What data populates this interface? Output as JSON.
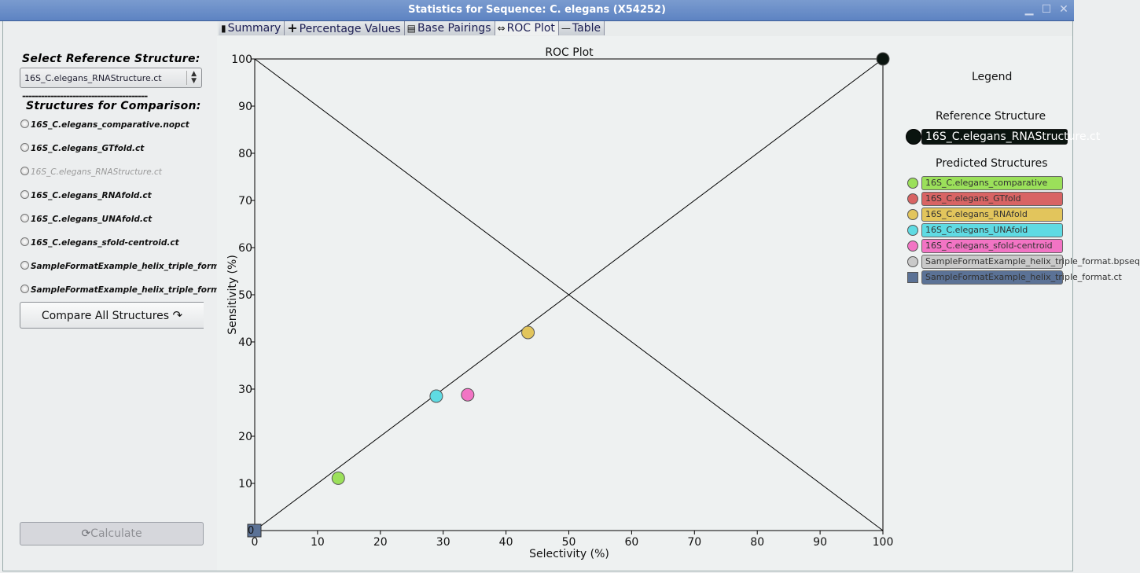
{
  "window": {
    "title": "Statistics for Sequence: C. elegans (X54252)"
  },
  "left": {
    "select_heading": "Select Reference Structure:",
    "selected_reference": "16S_C.elegans_RNAStructure.ct",
    "dash_line": "----------------------------------------",
    "comparison_heading": "Structures for Comparison:",
    "structures": [
      {
        "label": "16S_C.elegans_comparative.nopct",
        "enabled": true
      },
      {
        "label": "16S_C.elegans_GTfold.ct",
        "enabled": true
      },
      {
        "label": "16S_C.elegans_RNAStructure.ct",
        "enabled": false
      },
      {
        "label": "16S_C.elegans_RNAfold.ct",
        "enabled": true
      },
      {
        "label": "16S_C.elegans_UNAfold.ct",
        "enabled": true
      },
      {
        "label": "16S_C.elegans_sfold-centroid.ct",
        "enabled": true
      },
      {
        "label": "SampleFormatExample_helix_triple_format.bpseq",
        "enabled": true
      },
      {
        "label": "SampleFormatExample_helix_triple_format.ct",
        "enabled": true
      }
    ],
    "compare_all_label": "Compare All Structures",
    "calculate_label": "Calculate"
  },
  "tabs": [
    {
      "label": "Summary",
      "icon": "document-icon"
    },
    {
      "label": "Percentage Values",
      "icon": "plus-icon"
    },
    {
      "label": "Base Pairings",
      "icon": "base-pairing-icon"
    },
    {
      "label": "ROC Plot",
      "icon": "arrows-icon",
      "active": true
    },
    {
      "label": "Table",
      "icon": "dash-icon"
    }
  ],
  "legend": {
    "title": "Legend",
    "reference_heading": "Reference Structure",
    "reference": {
      "label": "16S_C.elegans_RNAStructure.ct",
      "color": "#0a140f"
    },
    "predicted_heading": "Predicted Structures",
    "predicted": [
      {
        "label": "16S_C.elegans_comparative",
        "color": "#9be05a",
        "marker": "circle"
      },
      {
        "label": "16S_C.elegans_GTfold",
        "color": "#d86464",
        "marker": "circle"
      },
      {
        "label": "16S_C.elegans_RNAfold",
        "color": "#e2c55c",
        "marker": "circle"
      },
      {
        "label": "16S_C.elegans_UNAfold",
        "color": "#5fdbe3",
        "marker": "circle"
      },
      {
        "label": "16S_C.elegans_sfold-centroid",
        "color": "#f274c4",
        "marker": "circle"
      },
      {
        "label": "SampleFormatExample_helix_triple_format.bpseq",
        "color": "#c9c9c9",
        "marker": "circle"
      },
      {
        "label": "SampleFormatExample_helix_triple_format.ct",
        "color": "#5b7296",
        "marker": "square"
      }
    ]
  },
  "chart_data": {
    "type": "scatter",
    "title": "ROC Plot",
    "xlabel": "Selectivity (%)",
    "ylabel": "Sensitivity (%)",
    "xlim": [
      0,
      100
    ],
    "ylim": [
      0,
      100
    ],
    "xticks": [
      0,
      10,
      20,
      30,
      40,
      50,
      60,
      70,
      80,
      90,
      100
    ],
    "yticks": [
      10,
      20,
      30,
      40,
      50,
      60,
      70,
      80,
      90,
      100
    ],
    "origin_label": "0",
    "diagonals": true,
    "series": [
      {
        "name": "16S_C.elegans_RNAStructure.ct",
        "x": 100,
        "y": 100,
        "color": "#0a140f",
        "marker": "circle"
      },
      {
        "name": "16S_C.elegans_comparative",
        "x": 13.3,
        "y": 11.1,
        "color": "#9be05a",
        "marker": "circle"
      },
      {
        "name": "16S_C.elegans_UNAfold",
        "x": 28.9,
        "y": 28.5,
        "color": "#5fdbe3",
        "marker": "circle"
      },
      {
        "name": "16S_C.elegans_sfold-centroid",
        "x": 33.9,
        "y": 28.8,
        "color": "#f274c4",
        "marker": "circle"
      },
      {
        "name": "16S_C.elegans_RNAfold",
        "x": 43.5,
        "y": 42.0,
        "color": "#e2c55c",
        "marker": "circle"
      },
      {
        "name": "SampleFormatExample_helix_triple_format.ct",
        "x": 0,
        "y": 0,
        "color": "#5b7296",
        "marker": "square"
      }
    ]
  }
}
